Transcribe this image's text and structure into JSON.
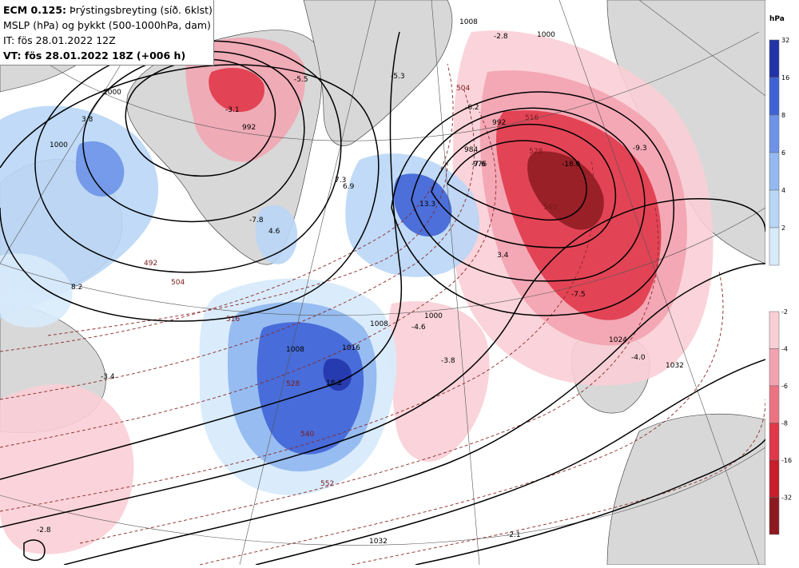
{
  "title": {
    "line1_bold": "ECM 0.125:",
    "line1_rest": "Þrýstingsbreyting (síð. 6klst)",
    "line2": "MSLP (hPa) og þykkt (500-1000hPa, dam)",
    "line3": "IT: fös 28.01.2022 12Z",
    "line4": "VT: fös 28.01.2022 18Z (+006 h)"
  },
  "legend": {
    "unit": "hPa",
    "rise_levels": [
      "32",
      "16",
      "8",
      "6",
      "4",
      "2"
    ],
    "fall_levels": [
      "-2",
      "-4",
      "-6",
      "-8",
      "-16",
      "-32"
    ],
    "rise_colors": [
      "#2233a8",
      "#3f63d6",
      "#6d93e8",
      "#93b9f0",
      "#b9d6f6",
      "#d8ebfb"
    ],
    "fall_colors": [
      "#f9cfd6",
      "#f3a3b0",
      "#ec7282",
      "#e0384a",
      "#c81d2c",
      "#8c1a20"
    ]
  },
  "map": {
    "land_color": "#d8d8d8",
    "isobar_labels": [
      {
        "text": "1008"
      },
      {
        "text": "1000"
      },
      {
        "text": "992"
      },
      {
        "text": "984"
      },
      {
        "text": "976"
      },
      {
        "text": "1000"
      },
      {
        "text": "1008"
      },
      {
        "text": "1016"
      },
      {
        "text": "1024"
      },
      {
        "text": "1032"
      },
      {
        "text": "1032"
      },
      {
        "text": "1000"
      },
      {
        "text": "992"
      },
      {
        "text": "1000"
      },
      {
        "text": "1008"
      }
    ],
    "thickness_labels": [
      {
        "text": "504"
      },
      {
        "text": "516"
      },
      {
        "text": "528"
      },
      {
        "text": "540"
      },
      {
        "text": "492"
      },
      {
        "text": "504"
      },
      {
        "text": "516"
      },
      {
        "text": "528"
      },
      {
        "text": "540"
      },
      {
        "text": "552"
      }
    ],
    "tendency_labels": [
      {
        "text": "-2.8"
      },
      {
        "text": "-5.3"
      },
      {
        "text": "-5.5"
      },
      {
        "text": "-3.1"
      },
      {
        "text": "3.8"
      },
      {
        "text": "-6.2"
      },
      {
        "text": "-7.6"
      },
      {
        "text": "-18.0"
      },
      {
        "text": "-9.3"
      },
      {
        "text": "13.3"
      },
      {
        "text": "4.6"
      },
      {
        "text": "7.3"
      },
      {
        "text": "6.9"
      },
      {
        "text": "-7.8"
      },
      {
        "text": "3.4"
      },
      {
        "text": "8.2"
      },
      {
        "text": "-4.6"
      },
      {
        "text": "-3.8"
      },
      {
        "text": "18.2"
      },
      {
        "text": "-7.5"
      },
      {
        "text": "-4.0"
      },
      {
        "text": "-3.4"
      },
      {
        "text": "-2.8"
      },
      {
        "text": "-2.1"
      }
    ]
  }
}
